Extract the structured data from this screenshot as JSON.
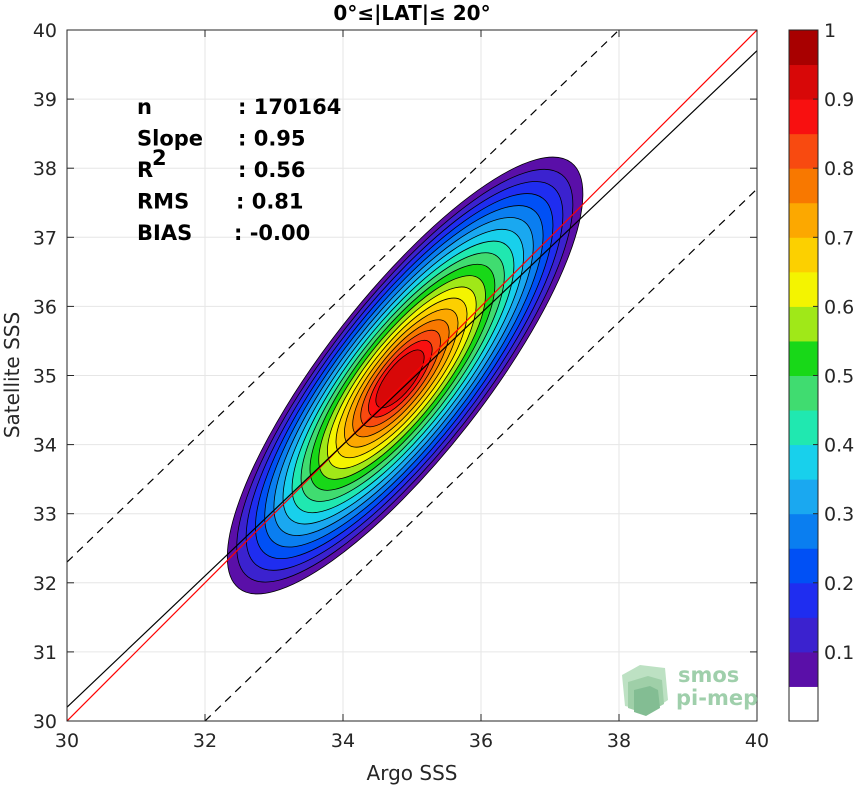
{
  "chart_data": {
    "type": "heatmap",
    "title": "0°≤|LAT|≤ 20°",
    "xlabel": "Argo SSS",
    "ylabel": "Satellite SSS",
    "xlim": [
      30,
      40
    ],
    "ylim": [
      30,
      40
    ],
    "xticks": [
      "30",
      "32",
      "34",
      "36",
      "38",
      "40"
    ],
    "yticks": [
      "30",
      "31",
      "32",
      "33",
      "34",
      "35",
      "36",
      "37",
      "38",
      "39",
      "40"
    ],
    "grid": true,
    "stats": [
      {
        "label": "n",
        "sep": ":",
        "value": "170164"
      },
      {
        "label": "Slope",
        "sep": ":",
        "value": "0.95"
      },
      {
        "label": "R",
        "sup": "2",
        "sep": ":",
        "value": "0.56"
      },
      {
        "label": "RMS",
        "sep": ":",
        "value": "0.81"
      },
      {
        "label": "BIAS",
        "sep": ":",
        "value": "-0.00"
      }
    ],
    "lines": {
      "one_to_one": {
        "x": [
          30,
          40
        ],
        "y": [
          30,
          40
        ],
        "color": "#ff0000"
      },
      "regression": {
        "x": [
          30,
          40
        ],
        "y": [
          30.2,
          39.7
        ],
        "color": "#000000"
      },
      "plus_bound": {
        "x": [
          30,
          38.0
        ],
        "y": [
          32.3,
          40
        ],
        "color": "#000000",
        "dash": true
      },
      "minus_bound": {
        "x": [
          32.0,
          40
        ],
        "y": [
          30,
          37.7
        ],
        "color": "#000000",
        "dash": true
      }
    },
    "density": {
      "center": [
        34.9,
        35.0
      ],
      "levels": [
        0.05,
        0.1,
        0.15,
        0.2,
        0.25,
        0.3,
        0.35,
        0.4,
        0.45,
        0.5,
        0.55,
        0.6,
        0.65,
        0.7,
        0.75,
        0.8,
        0.85,
        0.9
      ]
    },
    "colorbar": {
      "ticks": [
        "0.1",
        "0.2",
        "0.3",
        "0.4",
        "0.5",
        "0.6",
        "0.7",
        "0.8",
        "0.9",
        "1"
      ],
      "colors": [
        "#ffffff",
        "#5a0fa8",
        "#3b22cf",
        "#1f2df0",
        "#0050f5",
        "#0a7ef0",
        "#1aa8f0",
        "#18d0ec",
        "#20e8b0",
        "#40dc70",
        "#18d818",
        "#a0e818",
        "#f4f400",
        "#fcd000",
        "#fca800",
        "#f87800",
        "#f84a10",
        "#f81010",
        "#d80808",
        "#a80000"
      ]
    },
    "logo": {
      "line1": "smos",
      "line2": "pi-mep"
    }
  }
}
